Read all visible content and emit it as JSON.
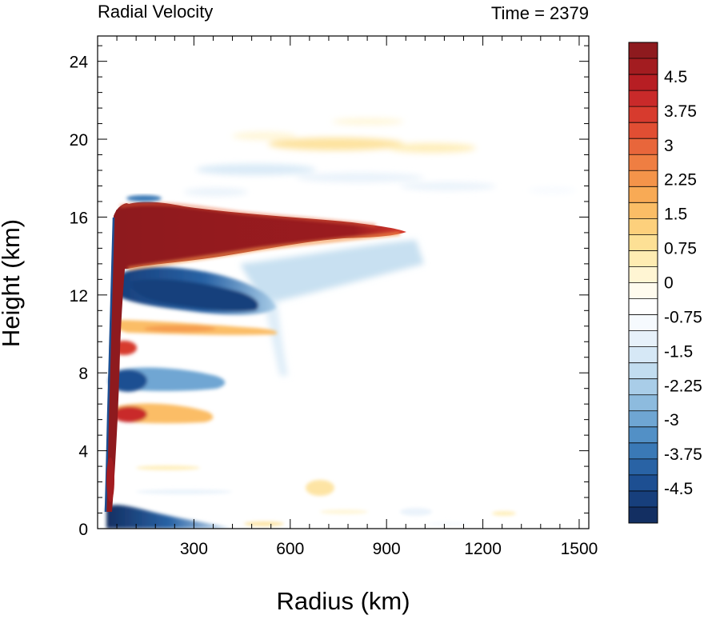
{
  "chart_data": {
    "type": "heatmap",
    "title_left": "Radial Velocity",
    "title_right": "Time = 2379",
    "xlabel": "Radius (km)",
    "ylabel": "Height (km)",
    "xlim": [
      0,
      1530
    ],
    "ylim": [
      0,
      25.3
    ],
    "xticks": [
      300,
      600,
      900,
      1200,
      1500
    ],
    "xtick_labels": [
      "300",
      "600",
      "900",
      "1200",
      "1500"
    ],
    "yticks": [
      0,
      4,
      8,
      12,
      16,
      20,
      24
    ],
    "ytick_labels": [
      "0",
      "4",
      "8",
      "12",
      "16",
      "20",
      "24"
    ],
    "grid": false,
    "colorbar": {
      "placement": "right",
      "vmin": -5.25,
      "vmax": 5.25,
      "interval": 0.25,
      "tick_labels": [
        "4.5",
        "3.75",
        "3",
        "2.25",
        "1.5",
        "0.75",
        "0",
        "-0.75",
        "-1.5",
        "-2.25",
        "-3",
        "-3.75",
        "-4.5"
      ],
      "tick_values": [
        4.5,
        3.75,
        3,
        2.25,
        1.5,
        0.75,
        0,
        -0.75,
        -1.5,
        -2.25,
        -3,
        -3.75,
        -4.5
      ],
      "colors_top_to_bottom": [
        "#8e1a1e",
        "#a31c20",
        "#b71e23",
        "#c92a2a",
        "#d73b2e",
        "#e14e33",
        "#e8663b",
        "#ef7e42",
        "#f4944a",
        "#f8aa55",
        "#fbbd66",
        "#fdd07c",
        "#fde095",
        "#feecb2",
        "#fff5d3",
        "#fffbee",
        "#ffffff",
        "#f6fafe",
        "#e7f1fa",
        "#d6e8f6",
        "#c2ddf0",
        "#a9cde8",
        "#8dbbde",
        "#6fa6d3",
        "#5290c6",
        "#3a79b6",
        "#2963a5",
        "#1d4f92",
        "#173f7c",
        "#132f62"
      ]
    },
    "features": [
      {
        "name": "upper-level outflow",
        "sign": "positive",
        "r_range_km": [
          30,
          960
        ],
        "z_range_km": [
          13.5,
          16.8
        ],
        "peak": 5.5
      },
      {
        "name": "inflow below outflow",
        "sign": "negative",
        "r_range_km": [
          60,
          560
        ],
        "z_range_km": [
          10.8,
          13.4
        ],
        "peak": -5.0
      },
      {
        "name": "eyewall outward jet",
        "sign": "positive",
        "r_range_km": [
          30,
          60
        ],
        "z_range_km": [
          0,
          16
        ],
        "peak": 5.5
      },
      {
        "name": "boundary-layer inflow",
        "sign": "negative",
        "r_range_km": [
          25,
          280
        ],
        "z_range_km": [
          0,
          1.0
        ],
        "peak": -5.0
      },
      {
        "name": "mid-level outflow",
        "sign": "positive",
        "r_range_km": [
          60,
          280
        ],
        "z_range_km": [
          5.2,
          6.4
        ],
        "peak": 3.0
      },
      {
        "name": "mid-level inflow",
        "sign": "negative",
        "r_range_km": [
          60,
          260
        ],
        "z_range_km": [
          7.0,
          8.4
        ],
        "peak": -3.5
      },
      {
        "name": "weak outflow band",
        "sign": "positive",
        "r_range_km": [
          60,
          480
        ],
        "z_range_km": [
          9.6,
          10.6
        ],
        "peak": 1.5
      },
      {
        "name": "upper weak inflow",
        "sign": "negative",
        "r_range_km": [
          240,
          950
        ],
        "z_range_km": [
          16.8,
          18.8
        ],
        "peak": -0.6
      },
      {
        "name": "upper weak outflow",
        "sign": "positive",
        "r_range_km": [
          300,
          1200
        ],
        "z_range_km": [
          19.0,
          20.6
        ],
        "peak": 0.5
      }
    ]
  }
}
